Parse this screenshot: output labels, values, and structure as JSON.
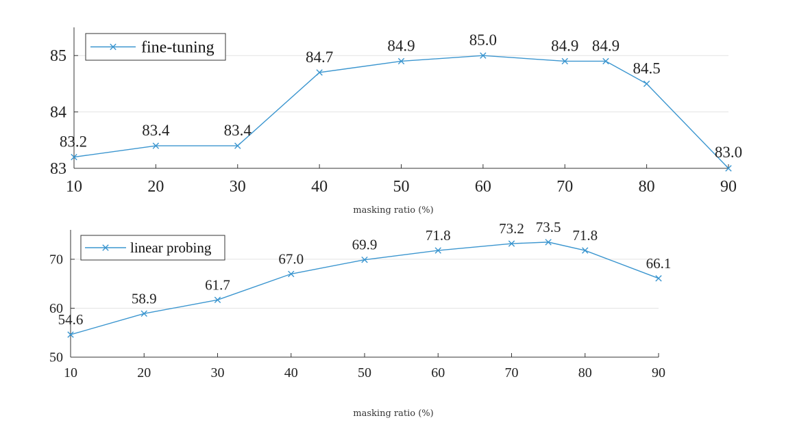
{
  "chart_data": [
    {
      "type": "line",
      "series": [
        {
          "name": "fine-tuning",
          "x": [
            10,
            20,
            30,
            40,
            50,
            60,
            70,
            75,
            80,
            90
          ],
          "values": [
            83.2,
            83.4,
            83.4,
            84.7,
            84.9,
            85.0,
            84.9,
            84.9,
            84.5,
            83.0
          ],
          "labels": [
            "83.2",
            "83.4",
            "83.4",
            "84.7",
            "84.9",
            "85.0",
            "84.9",
            "84.9",
            "84.5",
            "83.0"
          ]
        }
      ],
      "xlabel": "masking ratio (%)",
      "ylabel": "",
      "xlim": [
        10,
        90
      ],
      "ylim": [
        83,
        85.5
      ],
      "xticks": [
        "10",
        "20",
        "30",
        "40",
        "50",
        "60",
        "70",
        "80",
        "90"
      ],
      "yticks": [
        "83",
        "84",
        "85"
      ],
      "legend": "top-left",
      "grid": "horizontal",
      "color": "#3a95cf"
    },
    {
      "type": "line",
      "series": [
        {
          "name": "linear probing",
          "x": [
            10,
            20,
            30,
            40,
            50,
            60,
            70,
            75,
            80,
            90
          ],
          "values": [
            54.6,
            58.9,
            61.7,
            67.0,
            69.9,
            71.8,
            73.2,
            73.5,
            71.8,
            66.1
          ],
          "labels": [
            "54.6",
            "58.9",
            "61.7",
            "67.0",
            "69.9",
            "71.8",
            "73.2",
            "73.5",
            "71.8",
            "66.1"
          ]
        }
      ],
      "xlabel": "masking ratio (%)",
      "ylabel": "",
      "xlim": [
        10,
        90
      ],
      "ylim": [
        50,
        76
      ],
      "xticks": [
        "10",
        "20",
        "30",
        "40",
        "50",
        "60",
        "70",
        "80",
        "90"
      ],
      "yticks": [
        "50",
        "60",
        "70"
      ],
      "legend": "top-left",
      "grid": "horizontal",
      "color": "#3a95cf"
    }
  ]
}
